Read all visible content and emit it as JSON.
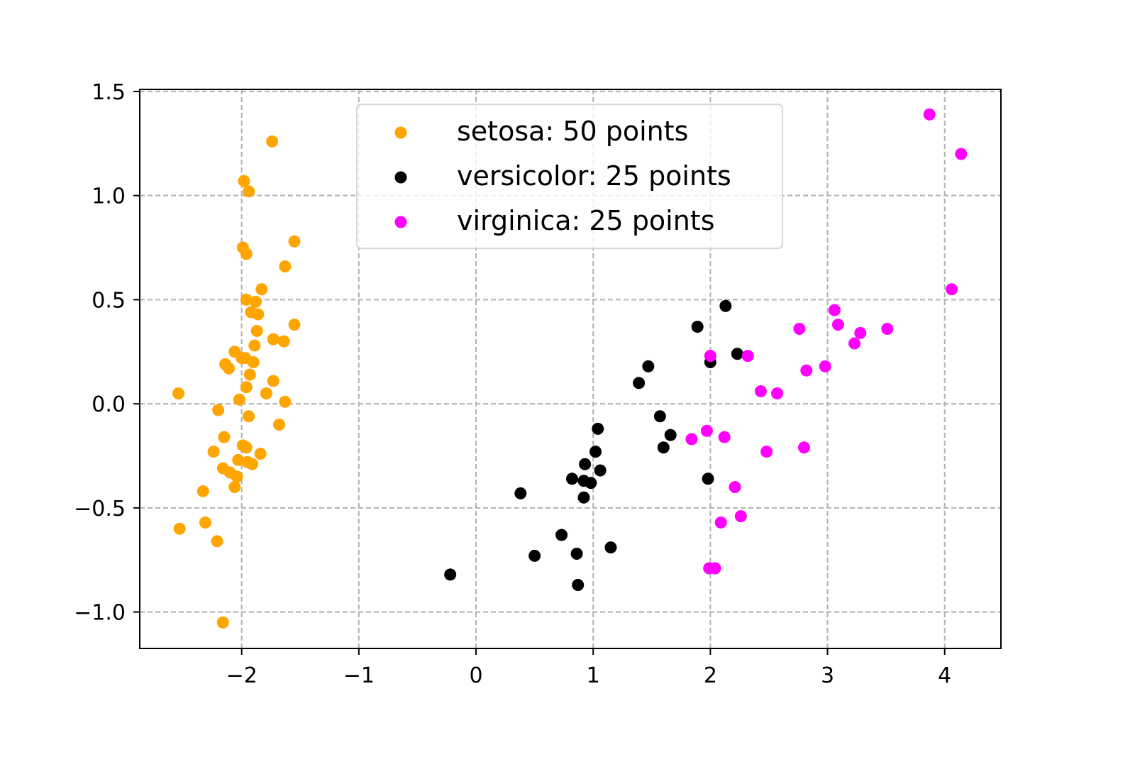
{
  "chart_data": {
    "type": "scatter",
    "title": "",
    "xlabel": "",
    "ylabel": "",
    "xlim": [
      -2.87,
      4.48
    ],
    "ylim": [
      -1.175,
      1.51
    ],
    "xticks": [
      -2,
      -1,
      0,
      1,
      2,
      3,
      4
    ],
    "yticks": [
      -1.0,
      -0.5,
      0.0,
      0.5,
      1.0,
      1.5
    ],
    "xtick_labels": [
      "−2",
      "−1",
      "0",
      "1",
      "2",
      "3",
      "4"
    ],
    "ytick_labels": [
      "−1.0",
      "−0.5",
      "0.0",
      "0.5",
      "1.0",
      "1.5"
    ],
    "grid": true,
    "legend_position": "upper-center",
    "series": [
      {
        "name": "setosa: 50 points",
        "color": "#ffa500",
        "points": [
          [
            -2.54,
            0.05
          ],
          [
            -2.53,
            -0.6
          ],
          [
            -2.33,
            -0.42
          ],
          [
            -2.31,
            -0.57
          ],
          [
            -2.21,
            -0.66
          ],
          [
            -2.16,
            -1.05
          ],
          [
            -2.24,
            -0.23
          ],
          [
            -2.2,
            -0.03
          ],
          [
            -2.15,
            -0.16
          ],
          [
            -2.16,
            -0.31
          ],
          [
            -2.1,
            -0.33
          ],
          [
            -2.06,
            -0.4
          ],
          [
            -2.04,
            -0.35
          ],
          [
            -2.03,
            -0.27
          ],
          [
            -1.99,
            -0.2
          ],
          [
            -1.96,
            -0.21
          ],
          [
            -1.95,
            -0.28
          ],
          [
            -1.91,
            -0.29
          ],
          [
            -1.84,
            -0.24
          ],
          [
            -1.94,
            -0.06
          ],
          [
            -2.02,
            0.02
          ],
          [
            -1.96,
            0.08
          ],
          [
            -1.93,
            0.14
          ],
          [
            -2.14,
            0.19
          ],
          [
            -2.11,
            0.17
          ],
          [
            -2.06,
            0.25
          ],
          [
            -1.97,
            0.22
          ],
          [
            -1.89,
            0.28
          ],
          [
            -1.87,
            0.35
          ],
          [
            -1.92,
            0.44
          ],
          [
            -1.86,
            0.43
          ],
          [
            -1.96,
            0.5
          ],
          [
            -1.88,
            0.49
          ],
          [
            -1.83,
            0.55
          ],
          [
            -1.99,
            0.75
          ],
          [
            -1.96,
            0.72
          ],
          [
            -1.98,
            1.07
          ],
          [
            -1.94,
            1.02
          ],
          [
            -1.74,
            1.26
          ],
          [
            -1.55,
            0.78
          ],
          [
            -1.63,
            0.66
          ],
          [
            -1.55,
            0.38
          ],
          [
            -1.64,
            0.3
          ],
          [
            -1.73,
            0.31
          ],
          [
            -1.73,
            0.11
          ],
          [
            -1.79,
            0.05
          ],
          [
            -1.63,
            0.01
          ],
          [
            -1.68,
            -0.1
          ],
          [
            -2.0,
            0.22
          ],
          [
            -1.9,
            0.2
          ]
        ]
      },
      {
        "name": "versicolor: 25 points",
        "color": "#000000",
        "points": [
          [
            -0.22,
            -0.82
          ],
          [
            0.38,
            -0.43
          ],
          [
            0.5,
            -0.73
          ],
          [
            0.73,
            -0.63
          ],
          [
            0.86,
            -0.72
          ],
          [
            0.87,
            -0.87
          ],
          [
            0.92,
            -0.45
          ],
          [
            0.82,
            -0.36
          ],
          [
            0.92,
            -0.37
          ],
          [
            0.98,
            -0.38
          ],
          [
            0.93,
            -0.29
          ],
          [
            1.06,
            -0.32
          ],
          [
            1.02,
            -0.23
          ],
          [
            1.04,
            -0.12
          ],
          [
            1.15,
            -0.69
          ],
          [
            1.39,
            0.1
          ],
          [
            1.47,
            0.18
          ],
          [
            1.57,
            -0.06
          ],
          [
            1.6,
            -0.21
          ],
          [
            1.66,
            -0.15
          ],
          [
            1.89,
            0.37
          ],
          [
            2.13,
            0.47
          ],
          [
            2.23,
            0.24
          ],
          [
            2.0,
            0.2
          ],
          [
            1.98,
            -0.36
          ]
        ]
      },
      {
        "name": "virginica: 25 points",
        "color": "#ff00ff",
        "points": [
          [
            1.84,
            -0.17
          ],
          [
            1.97,
            -0.13
          ],
          [
            2.12,
            -0.16
          ],
          [
            2.21,
            -0.4
          ],
          [
            2.09,
            -0.57
          ],
          [
            2.26,
            -0.54
          ],
          [
            1.99,
            -0.79
          ],
          [
            2.04,
            -0.79
          ],
          [
            2.48,
            -0.23
          ],
          [
            2.8,
            -0.21
          ],
          [
            2.43,
            0.06
          ],
          [
            2.57,
            0.05
          ],
          [
            2.32,
            0.23
          ],
          [
            2.76,
            0.36
          ],
          [
            2.82,
            0.16
          ],
          [
            2.98,
            0.18
          ],
          [
            3.06,
            0.45
          ],
          [
            3.09,
            0.38
          ],
          [
            3.23,
            0.29
          ],
          [
            3.28,
            0.34
          ],
          [
            3.51,
            0.36
          ],
          [
            4.06,
            0.55
          ],
          [
            3.87,
            1.39
          ],
          [
            4.14,
            1.2
          ],
          [
            2.0,
            0.23
          ]
        ]
      }
    ]
  }
}
